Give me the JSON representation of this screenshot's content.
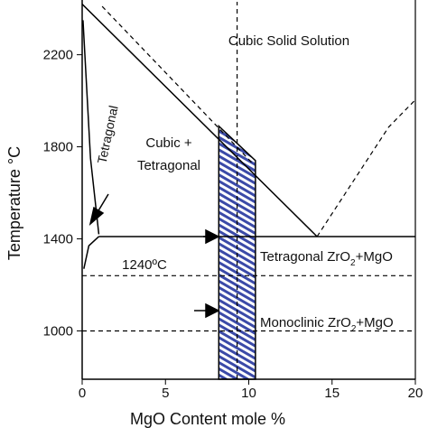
{
  "chart_data": {
    "type": "line",
    "xlabel": "MgO Content mole %",
    "ylabel": "Temperature °C",
    "xlim": [
      0,
      20
    ],
    "ylim": [
      790,
      2430
    ],
    "xticks": [
      0,
      5,
      10,
      15,
      20
    ],
    "yticks": [
      1000,
      1400,
      1800,
      2200
    ],
    "series": [
      {
        "color": "#000000",
        "dashed": false,
        "x": [
          0,
          14.1
        ],
        "values": [
          2420,
          1410
        ]
      },
      {
        "color": "#000000",
        "dashed": true,
        "x": [
          14.1,
          18.4,
          20
        ],
        "values": [
          1410,
          1886,
          2004
        ]
      },
      {
        "color": "#000000",
        "dashed": true,
        "x": [
          1.2,
          10.2
        ],
        "values": [
          2410,
          1730
        ]
      },
      {
        "color": "#000000",
        "dashed": false,
        "x": [
          0.05,
          0.5,
          1.0
        ],
        "values": [
          2350,
          1750,
          1420
        ]
      },
      {
        "color": "#000000",
        "dashed": false,
        "x": [
          0.1,
          0.4,
          1.0
        ],
        "values": [
          1270,
          1370,
          1410
        ]
      },
      {
        "color": "#000000",
        "dashed": false,
        "x": [
          1.0,
          20
        ],
        "values": [
          1410,
          1410
        ]
      },
      {
        "color": "#000000",
        "dashed": true,
        "x": [
          0,
          20
        ],
        "values": [
          1240,
          1240
        ]
      },
      {
        "color": "#000000",
        "dashed": true,
        "x": [
          0,
          20
        ],
        "values": [
          1000,
          1000
        ]
      },
      {
        "color": "#000000",
        "dashed": true,
        "x": [
          9.3,
          9.3
        ],
        "values": [
          790,
          2430
        ]
      }
    ],
    "hatched_region": {
      "color": "#3b4aa8",
      "x": [
        8.2,
        10.4
      ],
      "top": [
        1890,
        1740
      ]
    },
    "annotations": {
      "cubic": "Cubic Solid Solution",
      "cubic_tet_1": "Cubic +",
      "cubic_tet_2": "Tetragonal",
      "tetragonal": "Tetragonal",
      "eutectoid": "1240ºC",
      "tet_zro": {
        "text": "Tetragonal ZrO",
        "sub": "2",
        "after": "+MgO"
      },
      "mono_zro": {
        "text": "Monoclinic ZrO",
        "sub": "2",
        "after": "+MgO"
      }
    }
  }
}
